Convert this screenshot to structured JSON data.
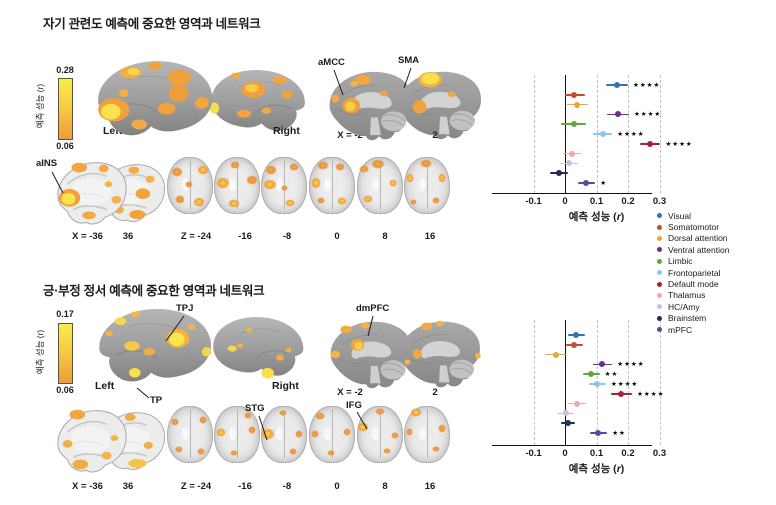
{
  "figure": {
    "panels": [
      {
        "title": "자기 관련도 예측에 중요한 영역과 네트워크",
        "colorbar": {
          "max": "0.28",
          "min": "0.06",
          "label": "예측 성능 (r)"
        },
        "surface_labels": {
          "left": "Left",
          "right": "Right"
        },
        "annotations": {
          "amcc": "aMCC",
          "sma": "SMA",
          "ains": "aINS"
        },
        "sagittal_coords": [
          "X = -2",
          "2"
        ],
        "slice_coords": [
          "X = -36",
          "36",
          "Z = -24",
          "-16",
          "-8",
          "0",
          "8",
          "16"
        ]
      },
      {
        "title": "긍·부정 정서 예측에 중요한 영역과 네트워크",
        "colorbar": {
          "max": "0.17",
          "min": "0.06",
          "label": "예측 성능 (r)"
        },
        "surface_labels": {
          "left": "Left",
          "right": "Right"
        },
        "annotations": {
          "tpj": "TPJ",
          "tp": "TP",
          "dmpfc": "dmPFC",
          "stg": "STG",
          "ifg": "IFG"
        },
        "sagittal_coords": [
          "X = -2",
          "2"
        ],
        "slice_coords": [
          "X = -36",
          "36",
          "Z = -24",
          "-16",
          "-8",
          "0",
          "8",
          "16"
        ]
      }
    ],
    "activation_colors": {
      "high": "#f9e24c",
      "low": "#ee9c39"
    }
  },
  "legend": {
    "items": [
      {
        "label": "Visual",
        "color": "#3272b4"
      },
      {
        "label": "Somatomotor",
        "color": "#c0502f"
      },
      {
        "label": "Dorsal attention",
        "color": "#e3a93d"
      },
      {
        "label": "Ventral attention",
        "color": "#6f2d8a"
      },
      {
        "label": "Limbic",
        "color": "#63a83e"
      },
      {
        "label": "Frontoparietal",
        "color": "#8ec6ea"
      },
      {
        "label": "Default mode",
        "color": "#a02433"
      },
      {
        "label": "Thalamus",
        "color": "#f2a8a8"
      },
      {
        "label": "HC/Amy",
        "color": "#cbc0df"
      },
      {
        "label": "Brainstem",
        "color": "#1e2f55"
      },
      {
        "label": "mPFC",
        "color": "#5a4a9f"
      }
    ]
  },
  "chart_data": [
    {
      "type": "scatter",
      "subtype": "forest-plot",
      "panel": "자기 관련도 예측에 중요한 영역과 네트워크",
      "xlabel": "예측 성능 (r)",
      "xlabel_parts": {
        "prefix": "예측 성능 (",
        "italic": "r",
        "suffix": ")"
      },
      "xticks": [
        -0.1,
        0,
        0.1,
        0.2,
        0.3
      ],
      "xtick_labels": [
        "-0.1",
        "0",
        "0.1",
        "0.2",
        "0.3"
      ],
      "xlim": [
        -0.15,
        0.38
      ],
      "grid": "vertical-dashed",
      "legend_position": "right",
      "series": [
        {
          "name": "Visual",
          "value": 0.165,
          "ci": [
            0.13,
            0.2
          ],
          "sig": "****"
        },
        {
          "name": "Somatomotor",
          "value": 0.027,
          "ci": [
            0.0,
            0.065
          ],
          "sig": ""
        },
        {
          "name": "Dorsal attention",
          "value": 0.038,
          "ci": [
            0.005,
            0.072
          ],
          "sig": ""
        },
        {
          "name": "Ventral attention",
          "value": 0.168,
          "ci": [
            0.133,
            0.203
          ],
          "sig": "****"
        },
        {
          "name": "Limbic",
          "value": 0.028,
          "ci": [
            -0.012,
            0.068
          ],
          "sig": ""
        },
        {
          "name": "Frontoparietal",
          "value": 0.12,
          "ci": [
            0.09,
            0.15
          ],
          "sig": "****"
        },
        {
          "name": "Default mode",
          "value": 0.27,
          "ci": [
            0.238,
            0.303
          ],
          "sig": "****"
        },
        {
          "name": "Thalamus",
          "value": 0.022,
          "ci": [
            -0.005,
            0.05
          ],
          "sig": ""
        },
        {
          "name": "HC/Amy",
          "value": 0.012,
          "ci": [
            -0.016,
            0.04
          ],
          "sig": ""
        },
        {
          "name": "Brainstem",
          "value": -0.018,
          "ci": [
            -0.048,
            0.008
          ],
          "sig": ""
        },
        {
          "name": "mPFC",
          "value": 0.068,
          "ci": [
            0.042,
            0.096
          ],
          "sig": "*"
        }
      ]
    },
    {
      "type": "scatter",
      "subtype": "forest-plot",
      "panel": "긍·부정 정서 예측에 중요한 영역과 네트워크",
      "xlabel": "예측 성능 (r)",
      "xlabel_parts": {
        "prefix": "예측 성능 (",
        "italic": "r",
        "suffix": ")"
      },
      "xticks": [
        -0.1,
        0,
        0.1,
        0.2,
        0.3
      ],
      "xtick_labels": [
        "-0.1",
        "0",
        "0.1",
        "0.2",
        "0.3"
      ],
      "xlim": [
        -0.15,
        0.38
      ],
      "grid": "vertical-dashed",
      "legend_position": "right",
      "series": [
        {
          "name": "Visual",
          "value": 0.036,
          "ci": [
            0.01,
            0.062
          ],
          "sig": ""
        },
        {
          "name": "Somatomotor",
          "value": 0.03,
          "ci": [
            0.002,
            0.058
          ],
          "sig": ""
        },
        {
          "name": "Dorsal attention",
          "value": -0.03,
          "ci": [
            -0.062,
            0.002
          ],
          "sig": ""
        },
        {
          "name": "Ventral attention",
          "value": 0.117,
          "ci": [
            0.088,
            0.15
          ],
          "sig": "****"
        },
        {
          "name": "Limbic",
          "value": 0.083,
          "ci": [
            0.056,
            0.11
          ],
          "sig": "**"
        },
        {
          "name": "Frontoparietal",
          "value": 0.102,
          "ci": [
            0.075,
            0.13
          ],
          "sig": "****"
        },
        {
          "name": "Default mode",
          "value": 0.178,
          "ci": [
            0.145,
            0.213
          ],
          "sig": "****"
        },
        {
          "name": "Thalamus",
          "value": 0.038,
          "ci": [
            0.01,
            0.066
          ],
          "sig": ""
        },
        {
          "name": "HC/Amy",
          "value": 0.004,
          "ci": [
            -0.024,
            0.03
          ],
          "sig": ""
        },
        {
          "name": "Brainstem",
          "value": 0.01,
          "ci": [
            -0.012,
            0.032
          ],
          "sig": ""
        },
        {
          "name": "mPFC",
          "value": 0.106,
          "ci": [
            0.078,
            0.134
          ],
          "sig": "**"
        }
      ]
    }
  ]
}
